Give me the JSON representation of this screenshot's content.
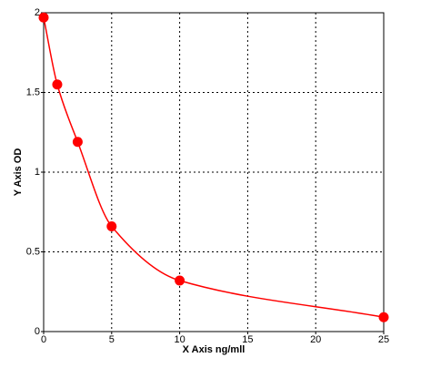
{
  "chart_data": {
    "type": "scatter",
    "x_label": "X Axis ng/mll",
    "y_label": "Y Axis OD",
    "series": [
      {
        "color": "#ff0000",
        "x": [
          0,
          1,
          2.5,
          5,
          10,
          25
        ],
        "values": [
          1.97,
          1.55,
          1.19,
          0.66,
          0.32,
          0.09
        ]
      }
    ],
    "fit_line": true,
    "xlim": [
      0,
      25
    ],
    "xticks": [
      0,
      5,
      10,
      15,
      20,
      25
    ],
    "ylim": [
      0,
      2
    ],
    "yticks": [
      0,
      0.5,
      1,
      1.5,
      2
    ],
    "grid": true
  }
}
